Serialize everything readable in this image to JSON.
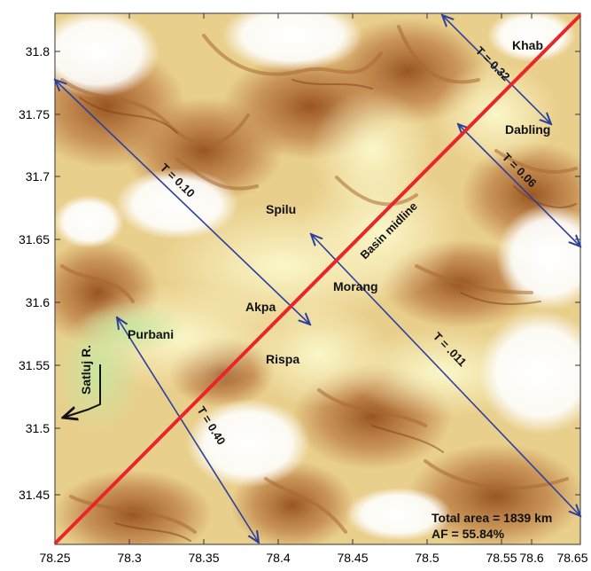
{
  "map": {
    "x_ticks": [
      "78.25",
      "78.3",
      "78.35",
      "78.4",
      "78.45",
      "78.5",
      "78.55",
      "78.6",
      "78.65"
    ],
    "y_ticks": [
      "31.8",
      "31.75",
      "31.7",
      "31.65",
      "31.6",
      "31.55",
      "31.5",
      "31.45"
    ],
    "places": {
      "khab": "Khab",
      "dabling": "Dabling",
      "spilu": "Spilu",
      "morang": "Morang",
      "akpa": "Akpa",
      "purbani": "Purbani",
      "rispa": "Rispa",
      "satluj": "Satluj R."
    },
    "transects": {
      "t1": "T = 0.32",
      "t2": "T = 0.06",
      "t3": "T = 0.10",
      "t4": "T = .011",
      "t5": "T = 0.40"
    },
    "midline_label": "Basin midline",
    "total_area": "Total area = 1839 km",
    "af": "AF = 55.84%",
    "colors": {
      "midline": "#e8262a",
      "transect": "#2b3f9e",
      "low": "#fffde0",
      "mid": "#e8c87a",
      "high": "#8a4a1c"
    }
  }
}
